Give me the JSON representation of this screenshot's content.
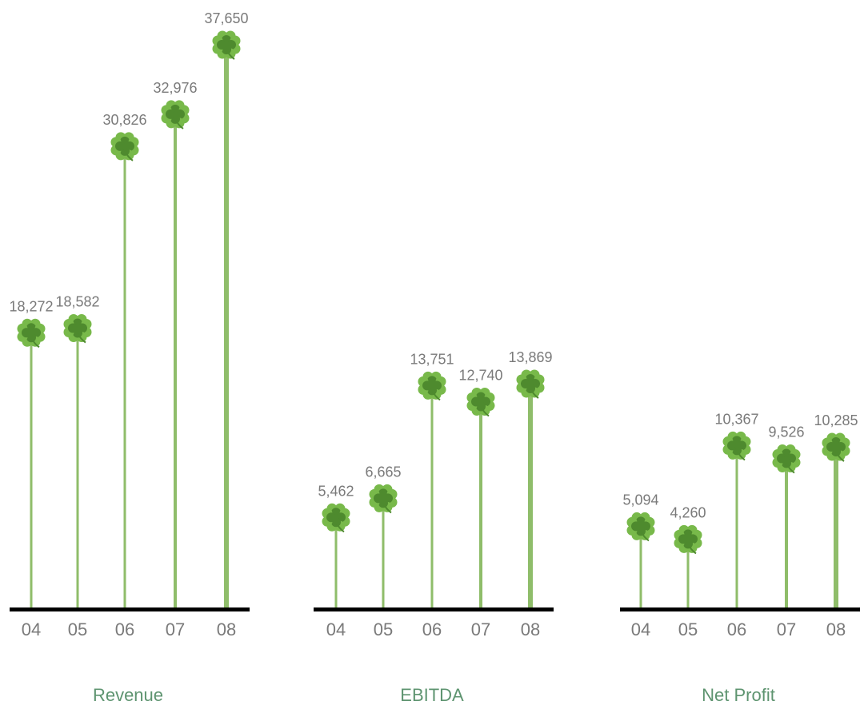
{
  "chart_data": [
    {
      "type": "bar",
      "title": "Revenue",
      "categories": [
        "04",
        "05",
        "06",
        "07",
        "08"
      ],
      "values": [
        18272,
        18582,
        30826,
        32976,
        37650
      ],
      "value_labels": [
        "18,272",
        "18,582",
        "30,826",
        "32,976",
        "37,650"
      ],
      "ylim": [
        0,
        37650
      ]
    },
    {
      "type": "bar",
      "title": "EBITDA",
      "categories": [
        "04",
        "05",
        "06",
        "07",
        "08"
      ],
      "values": [
        5462,
        6665,
        13751,
        12740,
        13869
      ],
      "value_labels": [
        "5,462",
        "6,665",
        "13,751",
        "12,740",
        "13,869"
      ],
      "ylim": [
        0,
        13869
      ]
    },
    {
      "type": "bar",
      "title": "Net Profit",
      "categories": [
        "04",
        "05",
        "06",
        "07",
        "08"
      ],
      "values": [
        5094,
        4260,
        10367,
        9526,
        10285
      ],
      "value_labels": [
        "5,094",
        "4,260",
        "10,367",
        "9,526",
        "10,285"
      ],
      "ylim": [
        0,
        10285
      ]
    }
  ],
  "colors": {
    "stem": "#8fbd6a",
    "leaf_dark": "#4e8a2e",
    "leaf_light": "#78b94a",
    "baseline": "#000000",
    "value_text": "#7a7a7a",
    "title_text": "#5e9470"
  },
  "marker_icon": "four-leaf-clover-icon"
}
